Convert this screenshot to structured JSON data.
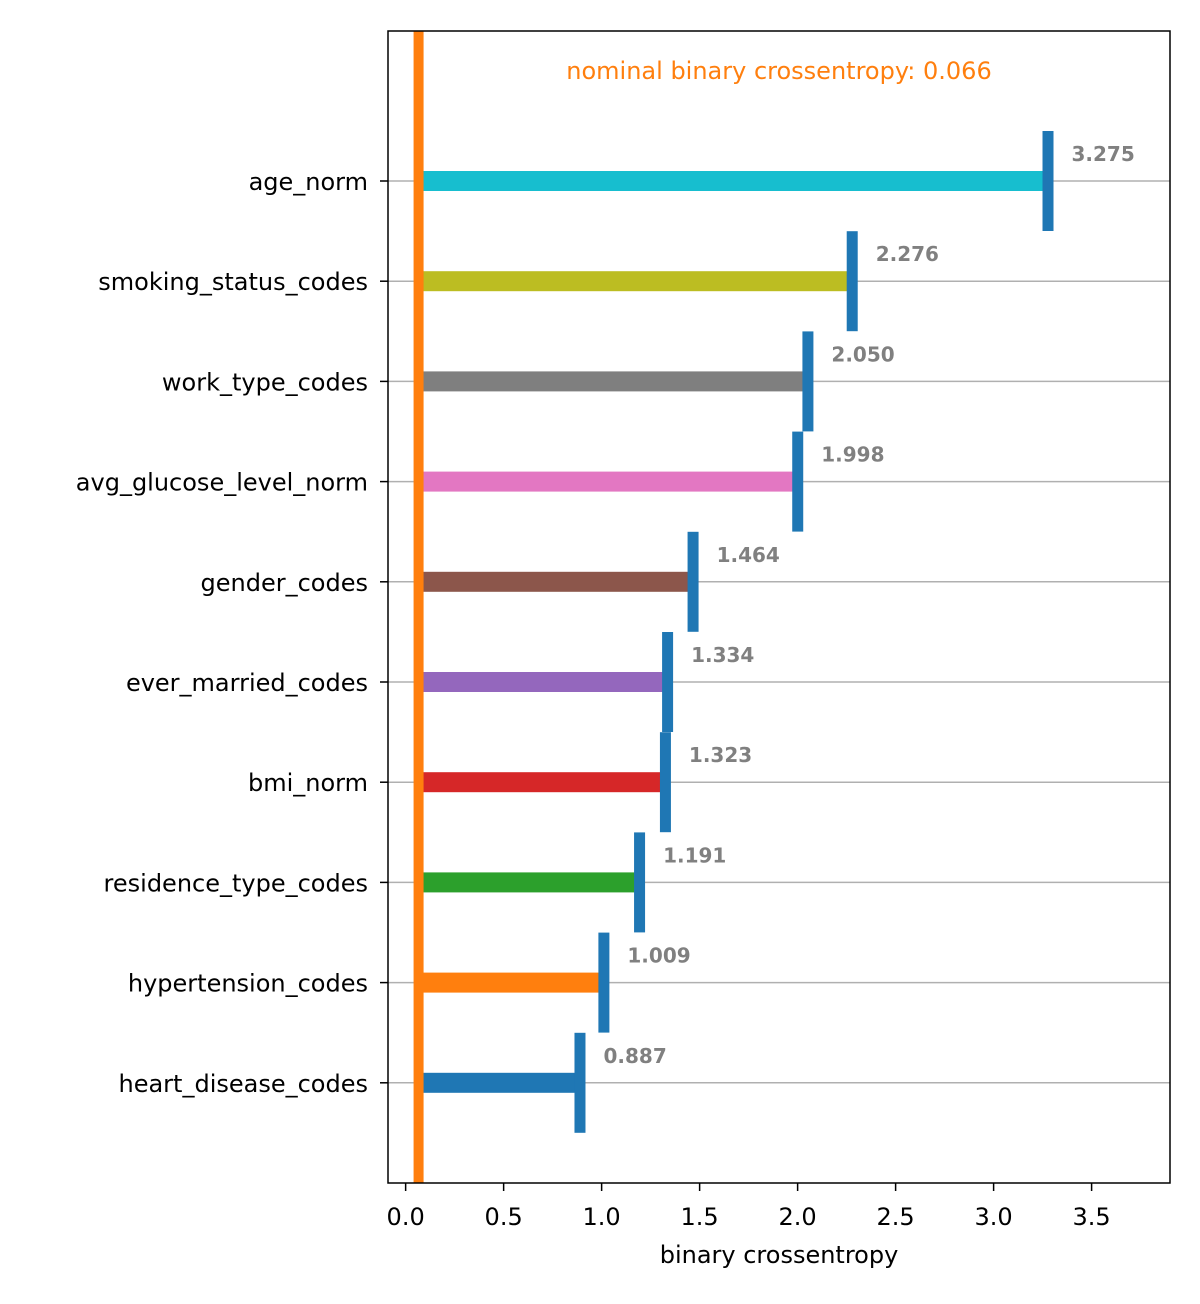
{
  "chart_data": {
    "type": "bar",
    "orientation": "horizontal",
    "title": "",
    "xlabel": "binary crossentropy",
    "ylabel": "",
    "xlim": [
      -0.09,
      3.9
    ],
    "x_ticks": [
      0.0,
      0.5,
      1.0,
      1.5,
      2.0,
      2.5,
      3.0,
      3.5
    ],
    "x_tick_labels": [
      "0.0",
      "0.5",
      "1.0",
      "1.5",
      "2.0",
      "2.5",
      "3.0",
      "3.5"
    ],
    "grid": "horizontal",
    "baseline": {
      "value": 0.066,
      "label": "nominal binary crossentropy: 0.066",
      "color": "#ff7f0e"
    },
    "marker_color": "#1f77b4",
    "value_label_color": "#808080",
    "categories": [
      "age_norm",
      "smoking_status_codes",
      "work_type_codes",
      "avg_glucose_level_norm",
      "gender_codes",
      "ever_married_codes",
      "bmi_norm",
      "residence_type_codes",
      "hypertension_codes",
      "heart_disease_codes"
    ],
    "values": [
      3.275,
      2.276,
      2.05,
      1.998,
      1.464,
      1.334,
      1.323,
      1.191,
      1.009,
      0.887
    ],
    "value_labels": [
      "3.275",
      "2.276",
      "2.050",
      "1.998",
      "1.464",
      "1.334",
      "1.323",
      "1.191",
      "1.009",
      "0.887"
    ],
    "colors": [
      "#17becf",
      "#bcbd22",
      "#7f7f7f",
      "#e377c2",
      "#8c564b",
      "#9467bd",
      "#d62728",
      "#2ca02c",
      "#ff7f0e",
      "#1f77b4"
    ]
  }
}
